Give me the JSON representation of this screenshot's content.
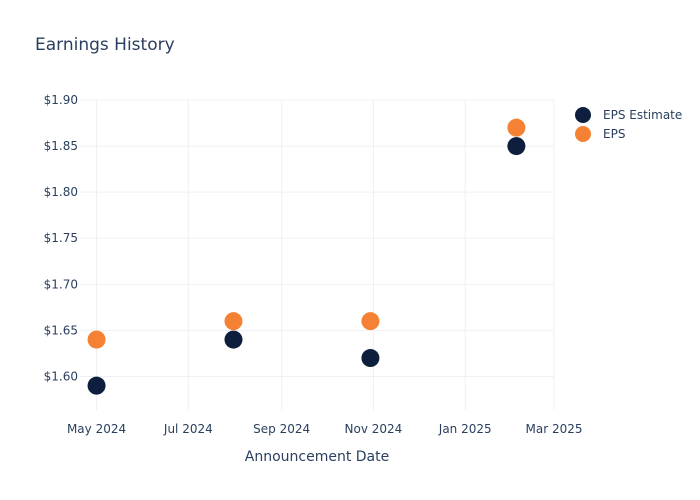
{
  "chart_data": {
    "type": "scatter",
    "title": "Earnings History",
    "xlabel": "Announcement Date",
    "ylabel": "",
    "x_ticks": [
      {
        "date": "2024-05-01",
        "label": "May 2024"
      },
      {
        "date": "2024-07-01",
        "label": "Jul 2024"
      },
      {
        "date": "2024-09-01",
        "label": "Sep 2024"
      },
      {
        "date": "2024-11-01",
        "label": "Nov 2024"
      },
      {
        "date": "2025-01-01",
        "label": "Jan 2025"
      },
      {
        "date": "2025-03-01",
        "label": "Mar 2025"
      }
    ],
    "y_ticks": [
      {
        "value": 1.6,
        "label": "$1.60"
      },
      {
        "value": 1.65,
        "label": "$1.65"
      },
      {
        "value": 1.7,
        "label": "$1.70"
      },
      {
        "value": 1.75,
        "label": "$1.75"
      },
      {
        "value": 1.8,
        "label": "$1.80"
      },
      {
        "value": 1.85,
        "label": "$1.85"
      },
      {
        "value": 1.9,
        "label": "$1.90"
      }
    ],
    "xlim": [
      "2024-04-20",
      "2025-03-01"
    ],
    "ylim": [
      1.5636,
      1.9
    ],
    "grid": true,
    "legend_position": "top-right",
    "series": [
      {
        "name": "EPS Estimate",
        "color": "#0d1f3d",
        "points": [
          {
            "x": "2024-05-01",
            "y": 1.59
          },
          {
            "x": "2024-07-31",
            "y": 1.64
          },
          {
            "x": "2024-10-30",
            "y": 1.62
          },
          {
            "x": "2025-02-04",
            "y": 1.85
          }
        ]
      },
      {
        "name": "EPS",
        "color": "#f58134",
        "points": [
          {
            "x": "2024-05-01",
            "y": 1.64
          },
          {
            "x": "2024-07-31",
            "y": 1.66
          },
          {
            "x": "2024-10-30",
            "y": 1.66
          },
          {
            "x": "2025-02-04",
            "y": 1.87
          }
        ]
      }
    ]
  }
}
